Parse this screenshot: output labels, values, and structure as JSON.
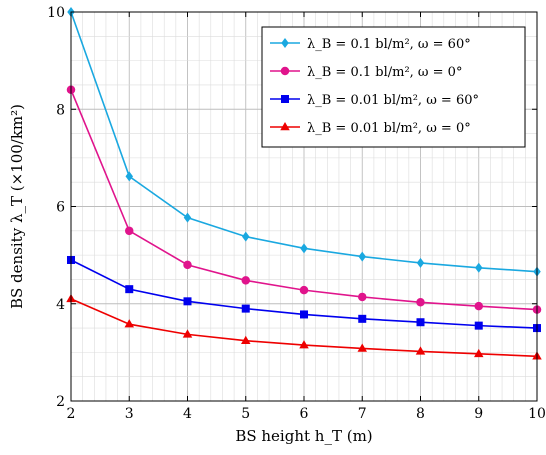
{
  "chart_data": {
    "type": "line",
    "xlabel": "BS height h_T (m)",
    "ylabel": "BS density λ_T (×100/km²)",
    "xlim": [
      2,
      10
    ],
    "ylim": [
      2,
      10
    ],
    "x_ticks": [
      2,
      3,
      4,
      5,
      6,
      7,
      8,
      9,
      10
    ],
    "y_ticks": [
      2,
      4,
      6,
      8,
      10
    ],
    "grid": true,
    "legend_position": "top-right",
    "x": [
      2,
      3,
      4,
      5,
      6,
      7,
      8,
      9,
      10
    ],
    "series": [
      {
        "name": "λ_B = 0.1 bl/m², ω = 60°",
        "color": "#1aa8e0",
        "marker": "diamond",
        "values": [
          10.0,
          6.62,
          5.77,
          5.38,
          5.14,
          4.97,
          4.84,
          4.74,
          4.66
        ]
      },
      {
        "name": "λ_B = 0.1 bl/m², ω = 0°",
        "color": "#e0148c",
        "marker": "circle",
        "values": [
          8.4,
          5.5,
          4.8,
          4.48,
          4.28,
          4.14,
          4.03,
          3.95,
          3.88
        ]
      },
      {
        "name": "λ_B = 0.01 bl/m², ω = 60°",
        "color": "#0000ee",
        "marker": "square",
        "values": [
          4.9,
          4.3,
          4.05,
          3.9,
          3.78,
          3.69,
          3.62,
          3.55,
          3.5
        ]
      },
      {
        "name": "λ_B = 0.01 bl/m², ω = 0°",
        "color": "#ee0000",
        "marker": "triangle",
        "values": [
          4.1,
          3.58,
          3.37,
          3.24,
          3.15,
          3.08,
          3.02,
          2.97,
          2.92
        ]
      }
    ]
  }
}
